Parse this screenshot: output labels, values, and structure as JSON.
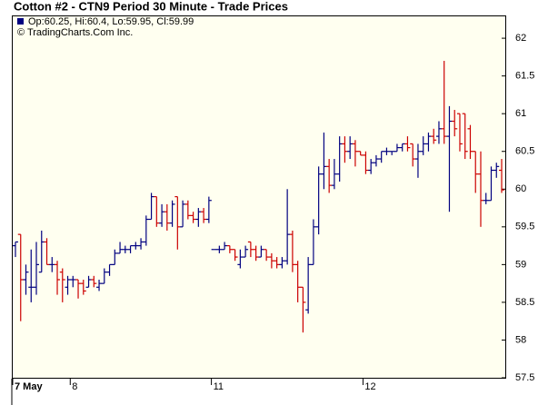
{
  "chart_data": {
    "type": "ohlc",
    "title": "Cotton #2 - CTN9 Period 30 Minute - Trade Prices",
    "legend_text": "Op:60.25, Hi:60.4, Lo:59.95, Cl:59.99",
    "copyright": "© TradingCharts.Com Inc.",
    "up_color": "#000080",
    "down_color": "#cc0000",
    "legend_color": "#000080",
    "grid": false,
    "ylim": [
      57.5,
      62.29
    ],
    "yticks": [
      57.5,
      58,
      58.5,
      59,
      59.5,
      60,
      60.5,
      61,
      61.5,
      62
    ],
    "categories": [
      "7 May",
      null,
      null,
      null,
      null,
      null,
      null,
      null,
      null,
      null,
      null,
      "8",
      null,
      null,
      null,
      null,
      null,
      null,
      null,
      null,
      null,
      null,
      null,
      null,
      null,
      null,
      null,
      null,
      null,
      null,
      null,
      null,
      null,
      null,
      null,
      null,
      null,
      null,
      "11",
      null,
      null,
      null,
      null,
      null,
      null,
      null,
      null,
      null,
      null,
      null,
      null,
      null,
      null,
      null,
      null,
      null,
      null,
      null,
      null,
      null,
      null,
      null,
      null,
      null,
      null,
      null,
      null,
      "12",
      null,
      null,
      null,
      null,
      null,
      null,
      null,
      null,
      null,
      null,
      null,
      null,
      null,
      null,
      null,
      null,
      null,
      null,
      null,
      null,
      null,
      null,
      null,
      null,
      null,
      null
    ],
    "open": [
      59.25,
      59.4,
      58.8,
      58.7,
      58.7,
      58.9,
      59.3,
      59.0,
      59.0,
      58.9,
      58.7,
      58.8,
      58.8,
      58.75,
      58.7,
      58.8,
      58.7,
      58.75,
      58.9,
      59.0,
      59.15,
      59.2,
      59.2,
      59.25,
      59.25,
      59.3,
      59.6,
      59.9,
      59.55,
      59.7,
      59.55,
      59.9,
      59.5,
      59.8,
      59.65,
      59.6,
      59.7,
      59.6,
      59.2,
      59.2,
      59.2,
      59.25,
      59.2,
      59.0,
      59.1,
      59.3,
      59.2,
      59.1,
      59.2,
      59.1,
      59.05,
      59.0,
      59.05,
      59.4,
      59.0,
      58.7,
      58.4,
      59.0,
      59.5,
      60.2,
      60.3,
      60.05,
      60.2,
      60.6,
      60.5,
      60.6,
      60.5,
      60.45,
      60.25,
      60.35,
      60.4,
      60.5,
      60.5,
      60.5,
      60.55,
      60.6,
      60.6,
      60.4,
      60.5,
      60.6,
      60.7,
      60.7,
      60.8,
      60.7,
      60.9,
      61.0,
      61.0,
      60.8,
      60.5,
      60.2,
      59.85,
      59.85,
      60.25,
      60.25
    ],
    "high": [
      59.3,
      59.4,
      59.0,
      59.2,
      59.3,
      59.45,
      59.35,
      59.1,
      59.05,
      58.95,
      58.85,
      58.85,
      58.8,
      58.8,
      58.85,
      58.85,
      58.8,
      58.95,
      59.0,
      59.2,
      59.3,
      59.25,
      59.25,
      59.3,
      59.35,
      59.65,
      59.95,
      59.9,
      59.8,
      59.8,
      59.85,
      59.9,
      59.85,
      59.85,
      59.7,
      59.75,
      59.75,
      59.9,
      59.2,
      59.25,
      59.3,
      59.25,
      59.2,
      59.2,
      59.25,
      59.3,
      59.25,
      59.25,
      59.2,
      59.15,
      59.1,
      59.1,
      60.0,
      59.45,
      59.05,
      58.7,
      59.1,
      59.6,
      60.3,
      60.75,
      60.4,
      60.4,
      60.7,
      60.7,
      60.7,
      60.65,
      60.5,
      60.5,
      60.4,
      60.45,
      60.5,
      60.55,
      60.5,
      60.6,
      60.6,
      60.7,
      60.6,
      60.6,
      60.7,
      60.75,
      60.8,
      60.9,
      61.7,
      61.1,
      61.05,
      61.0,
      61.0,
      60.85,
      60.5,
      60.5,
      59.95,
      60.3,
      60.35,
      60.4
    ],
    "low": [
      59.1,
      58.25,
      58.6,
      58.5,
      58.6,
      58.9,
      59.0,
      58.9,
      58.6,
      58.5,
      58.6,
      58.7,
      58.55,
      58.6,
      58.7,
      58.7,
      58.65,
      58.75,
      58.85,
      59.0,
      59.15,
      59.15,
      59.15,
      59.2,
      59.2,
      59.25,
      59.6,
      59.5,
      59.5,
      59.45,
      59.5,
      59.2,
      59.5,
      59.6,
      59.55,
      59.5,
      59.55,
      59.55,
      59.2,
      59.15,
      59.2,
      59.15,
      59.05,
      58.95,
      59.1,
      59.1,
      59.05,
      59.1,
      59.05,
      58.95,
      58.95,
      58.95,
      59.0,
      58.9,
      58.5,
      58.1,
      58.35,
      59.0,
      59.4,
      60.0,
      59.95,
      60.0,
      60.1,
      60.35,
      60.4,
      60.3,
      60.45,
      60.2,
      60.2,
      60.3,
      60.35,
      60.45,
      60.45,
      60.5,
      60.5,
      60.5,
      60.3,
      60.15,
      60.45,
      60.5,
      60.6,
      60.6,
      60.6,
      59.7,
      60.7,
      60.5,
      60.4,
      60.4,
      59.95,
      59.5,
      59.8,
      59.85,
      60.15,
      59.95
    ],
    "close": [
      59.3,
      58.8,
      58.9,
      58.7,
      59.0,
      59.3,
      59.0,
      59.0,
      58.8,
      58.8,
      58.8,
      58.8,
      58.75,
      58.65,
      58.8,
      58.75,
      58.75,
      58.9,
      59.0,
      59.15,
      59.2,
      59.2,
      59.25,
      59.25,
      59.3,
      59.6,
      59.9,
      59.55,
      59.7,
      59.55,
      59.8,
      59.5,
      59.8,
      59.65,
      59.6,
      59.7,
      59.6,
      59.85,
      59.2,
      59.2,
      59.25,
      59.2,
      59.1,
      59.1,
      59.2,
      59.2,
      59.1,
      59.2,
      59.1,
      59.05,
      59.0,
      59.05,
      59.4,
      59.0,
      58.7,
      58.5,
      59.0,
      59.5,
      60.2,
      60.3,
      60.05,
      60.2,
      60.6,
      60.5,
      60.6,
      60.5,
      60.45,
      60.25,
      60.35,
      60.4,
      60.5,
      60.5,
      60.5,
      60.55,
      60.6,
      60.55,
      60.4,
      60.5,
      60.6,
      60.7,
      60.65,
      60.8,
      60.7,
      60.9,
      60.8,
      60.6,
      60.5,
      60.5,
      60.2,
      59.85,
      59.85,
      60.25,
      60.3,
      59.99
    ]
  }
}
